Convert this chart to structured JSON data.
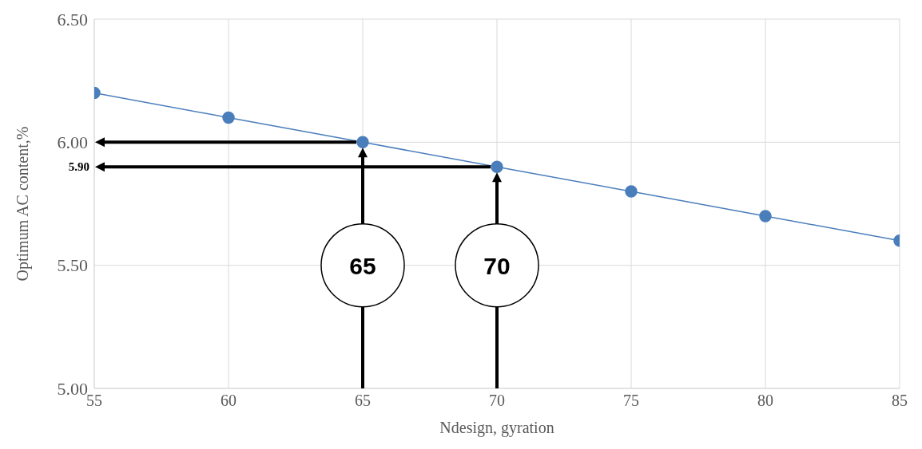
{
  "chart_data": {
    "type": "line",
    "xlabel": "Ndesign, gyration",
    "ylabel": "Optimum AC content,%",
    "x": [
      55,
      60,
      65,
      70,
      75,
      80,
      85
    ],
    "series": [
      {
        "color": "#4a7ebb",
        "values": [
          6.2,
          6.1,
          6.0,
          5.9,
          5.8,
          5.7,
          5.6
        ]
      }
    ],
    "xlim": [
      55,
      85
    ],
    "xticks": [
      55,
      60,
      65,
      70,
      75,
      80,
      85
    ],
    "ylim": [
      5.0,
      6.5
    ],
    "yticks": [
      {
        "value": 5.0,
        "label": "5.00"
      },
      {
        "value": 5.5,
        "label": "5.50"
      },
      {
        "value": 6.0,
        "label": "6.00"
      },
      {
        "value": 6.5,
        "label": "6.50"
      }
    ],
    "grid": true,
    "marker": "circle",
    "line_style": "solid",
    "ref_lines": [
      {
        "axis": "x",
        "value": 65,
        "label": "65",
        "color": "#000000"
      },
      {
        "axis": "x",
        "value": 70,
        "label": "70",
        "color": "#000000"
      },
      {
        "axis": "y",
        "value": 6.0,
        "color": "#000000"
      },
      {
        "axis": "y",
        "value": 5.9,
        "label": "5.90",
        "color": "#000000"
      }
    ]
  }
}
